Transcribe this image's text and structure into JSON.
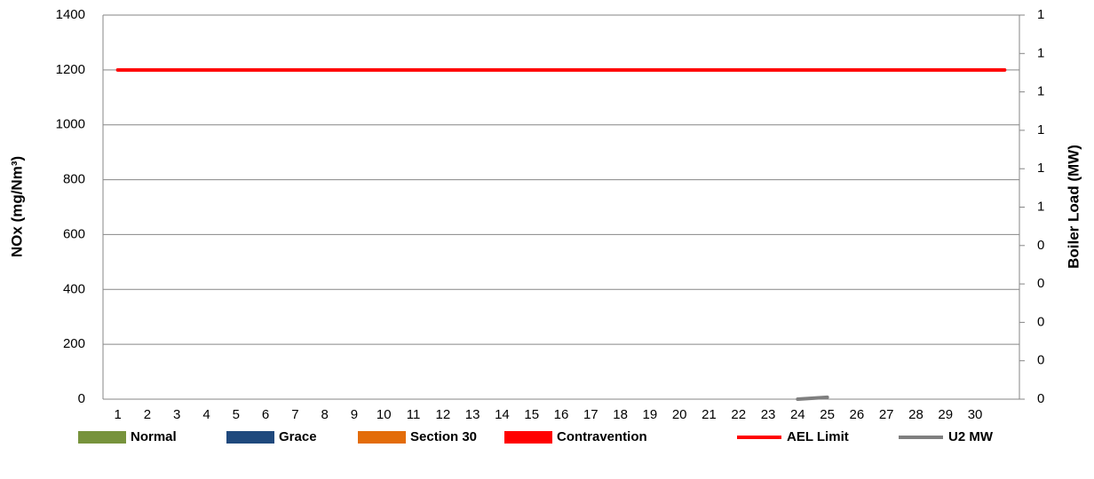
{
  "chart_data": {
    "type": "combo",
    "y_label": "NOx (mg/Nm³)",
    "y2_label": "Boiler Load (MW)",
    "categories": [
      "1",
      "2",
      "3",
      "4",
      "5",
      "6",
      "7",
      "8",
      "9",
      "10",
      "11",
      "12",
      "13",
      "14",
      "15",
      "16",
      "17",
      "18",
      "19",
      "20",
      "21",
      "22",
      "23",
      "24",
      "25",
      "26",
      "27",
      "28",
      "29",
      "30",
      null
    ],
    "ylim": [
      0,
      1400
    ],
    "yticks": [
      0,
      200,
      400,
      600,
      800,
      1000,
      1200,
      1400
    ],
    "y2lim": [
      0,
      1
    ],
    "y2ticks": [
      0,
      {
        "value": 0.1,
        "label": "0"
      },
      {
        "value": 0.2,
        "label": "0"
      },
      {
        "value": 0.3,
        "label": "0"
      },
      {
        "value": 0.4,
        "label": "0"
      },
      {
        "value": 0.5,
        "label": "1"
      },
      {
        "value": 0.6,
        "label": "1"
      },
      {
        "value": 0.7,
        "label": "1"
      },
      {
        "value": 0.8,
        "label": "1"
      },
      {
        "value": 0.9,
        "label": "1"
      },
      1
    ],
    "grid": true,
    "series": [
      {
        "name": "Normal",
        "type": "bar",
        "color": "#77933c",
        "values": [
          null,
          null,
          null,
          null,
          null,
          null,
          null,
          null,
          null,
          null,
          null,
          null,
          null,
          null,
          null,
          null,
          null,
          null,
          null,
          null,
          null,
          null,
          null,
          null,
          null,
          null,
          null,
          null,
          null,
          null,
          null
        ]
      },
      {
        "name": "Grace",
        "type": "bar",
        "color": "#1f497d",
        "values": [
          null,
          null,
          null,
          null,
          null,
          null,
          null,
          null,
          null,
          null,
          null,
          null,
          null,
          null,
          null,
          null,
          null,
          null,
          null,
          null,
          null,
          null,
          null,
          null,
          null,
          null,
          null,
          null,
          null,
          null,
          null
        ]
      },
      {
        "name": "Section 30",
        "type": "bar",
        "color": "#e36c09",
        "values": [
          null,
          null,
          null,
          null,
          null,
          null,
          null,
          null,
          null,
          null,
          null,
          null,
          null,
          null,
          null,
          null,
          null,
          null,
          null,
          null,
          null,
          null,
          null,
          null,
          null,
          null,
          null,
          null,
          null,
          null,
          null
        ]
      },
      {
        "name": "Contravention",
        "type": "bar",
        "color": "#ff0000",
        "values": [
          null,
          null,
          null,
          null,
          null,
          null,
          null,
          null,
          null,
          null,
          null,
          null,
          null,
          null,
          null,
          null,
          null,
          null,
          null,
          null,
          null,
          null,
          null,
          null,
          null,
          null,
          null,
          null,
          null,
          null,
          null
        ]
      },
      {
        "name": "AEL Limit",
        "type": "line",
        "color": "#ff0000",
        "values": [
          1200,
          1200,
          1200,
          1200,
          1200,
          1200,
          1200,
          1200,
          1200,
          1200,
          1200,
          1200,
          1200,
          1200,
          1200,
          1200,
          1200,
          1200,
          1200,
          1200,
          1200,
          1200,
          1200,
          1200,
          1200,
          1200,
          1200,
          1200,
          1200,
          1200,
          1200
        ]
      },
      {
        "name": "U2 MW",
        "type": "line",
        "axis": "y2",
        "color": "#7f7f7f",
        "values": [
          null,
          null,
          null,
          null,
          null,
          null,
          null,
          null,
          null,
          null,
          null,
          null,
          null,
          null,
          null,
          null,
          null,
          null,
          null,
          null,
          null,
          null,
          null,
          0,
          0.005,
          null,
          null,
          null,
          null,
          null,
          null
        ]
      }
    ]
  }
}
